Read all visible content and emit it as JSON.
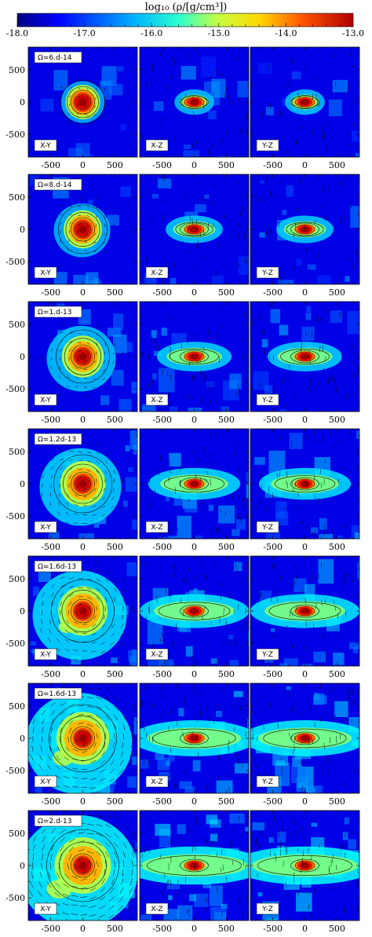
{
  "figure": {
    "colorbar_title": "log₁₀ (ρ/[g/cm³])",
    "colorbar_ticks": [
      "-18.0",
      "-17.0",
      "-16.0",
      "-15.0",
      "-14.0",
      "-13.0"
    ],
    "x_ticks": [
      "-500",
      "0",
      "500"
    ],
    "y_ticks": [
      "500",
      "0",
      "-500"
    ]
  },
  "chart_data": {
    "type": "heatmap",
    "title": "",
    "colorbar": {
      "label": "log₁₀ (ρ/[g/cm³])",
      "range": [
        -18.0,
        -13.0
      ],
      "ticks": [
        -18.0,
        -17.0,
        -16.0,
        -15.0,
        -14.0,
        -13.0
      ],
      "colormap": "jet"
    },
    "x_ticks": [
      -500,
      0,
      500
    ],
    "y_ticks": [
      -500,
      0,
      500
    ],
    "axis_range": [
      -850,
      850
    ],
    "projections": [
      "X-Y",
      "X-Z",
      "Y-Z"
    ],
    "rows": [
      {
        "omega_label": "Ω=6.d-14",
        "omega": 6e-14
      },
      {
        "omega_label": "Ω=8.d-14",
        "omega": 8e-14
      },
      {
        "omega_label": "Ω=1.d-13",
        "omega": 1e-13
      },
      {
        "omega_label": "Ω=1.2d-13",
        "omega": 1.2e-13
      },
      {
        "omega_label": "Ω=1.6d-13",
        "omega": 1.6e-13
      },
      {
        "omega_label": "Ω=1.6d-13",
        "omega": 1.6e-13
      },
      {
        "omega_label": "Ω=2.d-13",
        "omega": 2e-13
      }
    ]
  }
}
